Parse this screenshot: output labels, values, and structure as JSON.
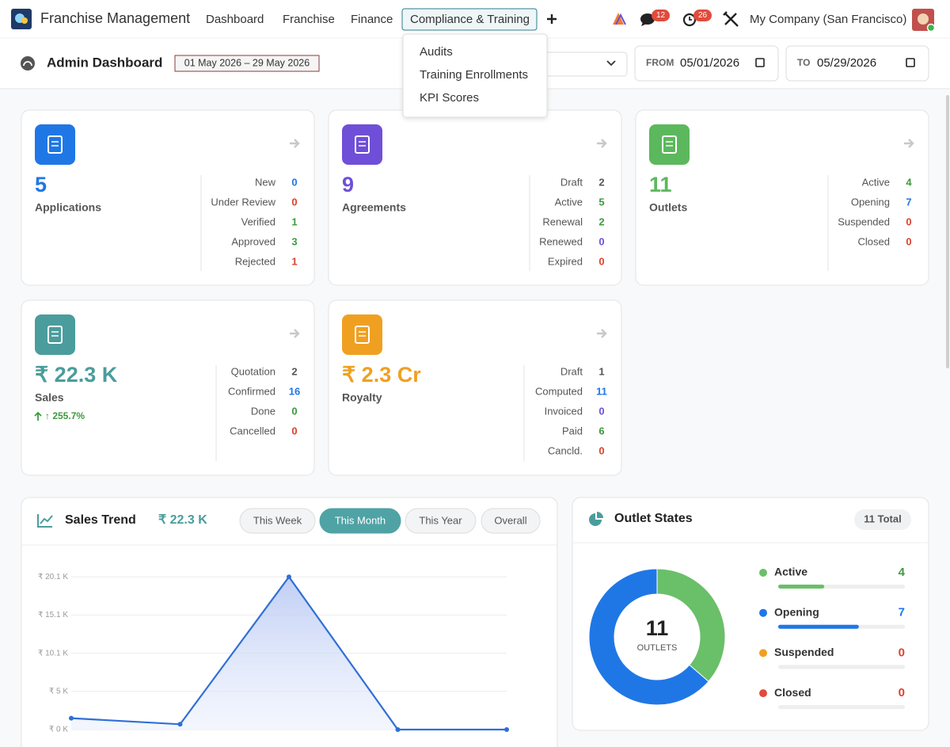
{
  "navbar": {
    "app_name": "Franchise Management",
    "menu": [
      "Dashboard",
      "Franchise",
      "Finance",
      "Compliance & Training"
    ],
    "dropdown": [
      "Audits",
      "Training Enrollments",
      "KPI Scores"
    ],
    "messages_count": 12,
    "activities_count": 26,
    "company": "My Company (San Francisco)"
  },
  "header": {
    "title": "Admin Dashboard",
    "date_range": "01 May 2026 – 29 May 2026",
    "from_label": "FROM",
    "from_date": "05/01/2026",
    "to_label": "TO",
    "to_date": "05/29/2026"
  },
  "cards": [
    {
      "value": 5,
      "label": "Applications",
      "color": "#1f77e6",
      "stats": [
        {
          "name": "New",
          "value": 0,
          "color": "#1f77e6"
        },
        {
          "name": "Under Review",
          "value": 0,
          "color": "#d9432f"
        },
        {
          "name": "Verified",
          "value": 1,
          "color": "#3d9a3d"
        },
        {
          "name": "Approved",
          "value": 3,
          "color": "#3d9a3d"
        },
        {
          "name": "Rejected",
          "value": 1,
          "color": "#d9432f"
        }
      ]
    },
    {
      "value": 9,
      "label": "Agreements",
      "color": "#6f4fd8",
      "stats": [
        {
          "name": "Draft",
          "value": 2,
          "color": "#555555"
        },
        {
          "name": "Active",
          "value": 5,
          "color": "#3d9a3d"
        },
        {
          "name": "Renewal",
          "value": 2,
          "color": "#3d9a3d"
        },
        {
          "name": "Renewed",
          "value": 0,
          "color": "#6f4fd8"
        },
        {
          "name": "Expired",
          "value": 0,
          "color": "#d9432f"
        }
      ]
    },
    {
      "value": 11,
      "label": "Outlets",
      "color": "#5cb85c",
      "stats": [
        {
          "name": "Active",
          "value": 4,
          "color": "#3d9a3d"
        },
        {
          "name": "Opening",
          "value": 7,
          "color": "#1f77e6"
        },
        {
          "name": "Suspended",
          "value": 0,
          "color": "#d9432f"
        },
        {
          "name": "Closed",
          "value": 0,
          "color": "#d9432f"
        }
      ]
    },
    {
      "value": "₹ 22.3 K",
      "label": "Sales",
      "change": "↑ 255.7%",
      "color": "#4a9d9c",
      "stats": [
        {
          "name": "Quotation",
          "value": 2,
          "color": "#555555"
        },
        {
          "name": "Confirmed",
          "value": 16,
          "color": "#1f77e6"
        },
        {
          "name": "Done",
          "value": 0,
          "color": "#3d9a3d"
        },
        {
          "name": "Cancelled",
          "value": 0,
          "color": "#d9432f"
        }
      ]
    },
    {
      "value": "₹ 2.3 Cr",
      "label": "Royalty",
      "color": "#f0a020",
      "stats": [
        {
          "name": "Draft",
          "value": 1,
          "color": "#555555"
        },
        {
          "name": "Computed",
          "value": 11,
          "color": "#1f77e6"
        },
        {
          "name": "Invoiced",
          "value": 0,
          "color": "#6f4fd8"
        },
        {
          "name": "Paid",
          "value": 6,
          "color": "#3d9a3d"
        },
        {
          "name": "Cancld.",
          "value": 0,
          "color": "#d9432f"
        }
      ]
    }
  ],
  "sales_trend": {
    "title": "Sales Trend",
    "total": "₹ 22.3 K",
    "tabs": [
      "This Week",
      "This Month",
      "This Year",
      "Overall"
    ],
    "chart": {
      "type": "line",
      "categories": [
        null,
        null,
        null,
        null,
        null
      ],
      "values": [
        1.5,
        0.7,
        20.1,
        0,
        0
      ],
      "color": "#2f6fd6",
      "ylim": [
        0,
        22
      ],
      "yticks": [
        {
          "value": 0,
          "label": "₹ 0 K"
        },
        {
          "value": 5.03,
          "label": "₹ 5 K"
        },
        {
          "value": 10.05,
          "label": "₹ 10.1 K"
        },
        {
          "value": 15.08,
          "label": "₹ 15.1 K"
        },
        {
          "value": 20.1,
          "label": "₹ 20.1 K"
        }
      ],
      "grid": true
    }
  },
  "outlet_states": {
    "title": "Outlet States",
    "total_badge": "11 Total",
    "center_value": 11,
    "center_label": "OUTLETS",
    "chart": {
      "type": "donut",
      "categories": [
        "Active",
        "Opening",
        "Suspended",
        "Closed"
      ],
      "values": [
        4,
        7,
        0,
        0
      ],
      "colors": [
        "#6abf69",
        "#1f77e6",
        "#f0a020",
        "#e04b3c"
      ],
      "value_colors": [
        "#3d9a3d",
        "#1f77e6",
        "#d9432f",
        "#d9432f"
      ]
    }
  }
}
